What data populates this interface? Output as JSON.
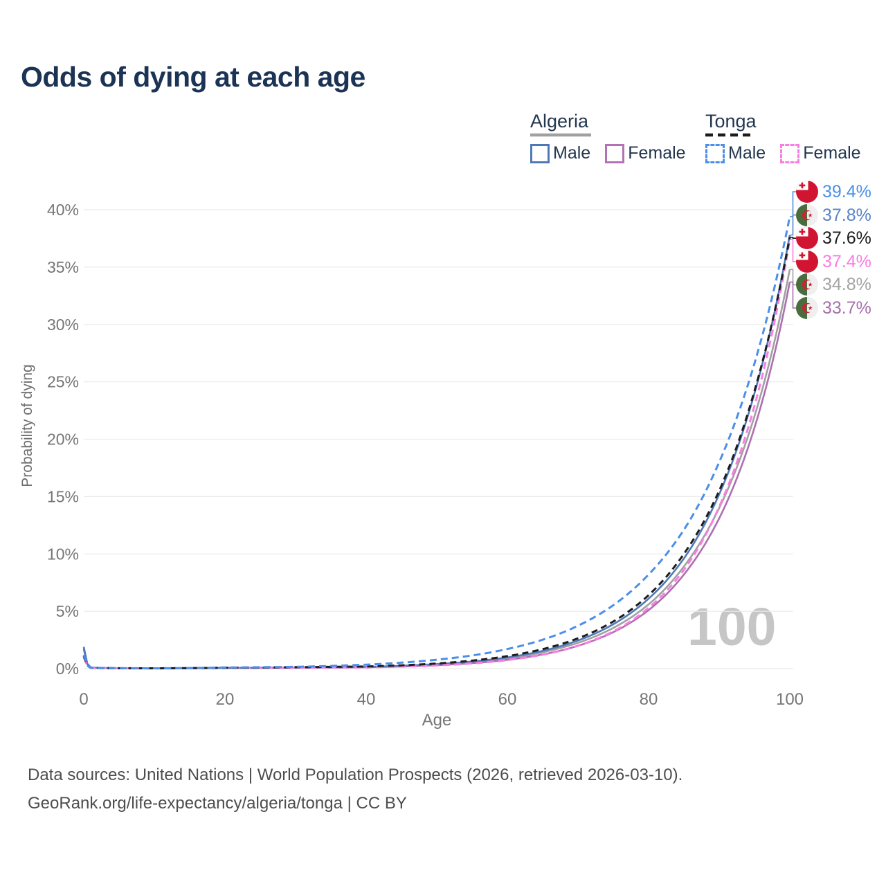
{
  "title": "Odds of dying at each age",
  "watermark": "100",
  "footer": {
    "line1": "Data sources: United Nations | World Population Prospects (2026, retrieved 2026-03-10).",
    "line2": "GeoRank.org/life-expectancy/algeria/tonga | CC BY"
  },
  "legend": {
    "groups": [
      {
        "country": "Algeria",
        "line_style": "solid",
        "underline_color": "#a0a0a0",
        "items": [
          {
            "label": "Male",
            "color": "#4e79b9"
          },
          {
            "label": "Female",
            "color": "#b372b4"
          }
        ]
      },
      {
        "country": "Tonga",
        "line_style": "dashed",
        "underline_color": "#1c1c1c",
        "items": [
          {
            "label": "Male",
            "color": "#4a8fe8"
          },
          {
            "label": "Female",
            "color": "#f97de2"
          }
        ]
      }
    ]
  },
  "chart_data": {
    "type": "line",
    "title": "Odds of dying at each age",
    "xlabel": "Age",
    "ylabel": "Probability of dying",
    "xlim": [
      0,
      100
    ],
    "ylim_percent": [
      0,
      42
    ],
    "x_ticks": [
      0,
      20,
      40,
      60,
      80,
      100
    ],
    "y_ticks_percent": [
      0,
      5,
      10,
      15,
      20,
      25,
      30,
      35,
      40
    ],
    "grid": "horizontal-only",
    "legend_position": "top-right",
    "ages": [
      0,
      1,
      5,
      10,
      20,
      30,
      40,
      50,
      55,
      60,
      65,
      70,
      75,
      80,
      85,
      90,
      95,
      100
    ],
    "series": [
      {
        "id": "algeria-average",
        "name": "Algeria",
        "country": "Algeria",
        "sex": "both",
        "color": "#a0a0a0",
        "dash": null,
        "values_percent": [
          1.8,
          0.09,
          0.035,
          0.03,
          0.06,
          0.09,
          0.15,
          0.36,
          0.57,
          0.9,
          1.43,
          2.25,
          3.55,
          5.6,
          8.9,
          14.0,
          22.0,
          34.8
        ]
      },
      {
        "id": "algeria-female",
        "name": "Algeria Female",
        "country": "Algeria",
        "sex": "female",
        "color": "#ad6fb0",
        "dash": null,
        "values_percent": [
          1.7,
          0.08,
          0.03,
          0.02,
          0.05,
          0.07,
          0.12,
          0.3,
          0.48,
          0.77,
          1.24,
          1.99,
          3.18,
          5.1,
          8.2,
          13.1,
          21.0,
          33.7
        ]
      },
      {
        "id": "algeria-male",
        "name": "Algeria Male",
        "country": "Algeria",
        "sex": "male",
        "color": "#4e79b9",
        "dash": null,
        "values_percent": [
          1.9,
          0.1,
          0.04,
          0.03,
          0.07,
          0.1,
          0.16,
          0.4,
          0.62,
          0.98,
          1.55,
          2.45,
          3.87,
          6.1,
          9.6,
          15.2,
          24.0,
          37.8
        ]
      },
      {
        "id": "tonga-female",
        "name": "Tonga Female",
        "country": "Tonga",
        "sex": "female",
        "color": "#f97de2",
        "dash": "10 6",
        "values_percent": [
          1.0,
          0.06,
          0.03,
          0.02,
          0.06,
          0.09,
          0.11,
          0.28,
          0.46,
          0.75,
          1.22,
          2.0,
          3.25,
          5.3,
          8.6,
          14.1,
          22.9,
          37.4
        ]
      },
      {
        "id": "tonga-average",
        "name": "Tonga",
        "country": "Tonga",
        "sex": "both",
        "color": "#1c1c1c",
        "dash": "9 6",
        "values_percent": [
          1.1,
          0.07,
          0.035,
          0.03,
          0.08,
          0.13,
          0.19,
          0.45,
          0.7,
          1.09,
          1.7,
          2.64,
          4.11,
          6.4,
          10.0,
          15.5,
          24.2,
          37.6
        ]
      },
      {
        "id": "tonga-male",
        "name": "Tonga Male",
        "country": "Tonga",
        "sex": "male",
        "color": "#4a8fe8",
        "dash": "10 6",
        "values_percent": [
          1.2,
          0.08,
          0.04,
          0.03,
          0.1,
          0.16,
          0.35,
          0.78,
          1.15,
          1.71,
          2.52,
          3.74,
          5.53,
          8.2,
          12.1,
          18.0,
          26.6,
          39.4
        ]
      }
    ],
    "end_labels": [
      {
        "text": "39.4%",
        "value_percent": 39.4,
        "flag": "tonga",
        "color": "#4a8fe8",
        "series": "tonga-male"
      },
      {
        "text": "37.8%",
        "value_percent": 37.8,
        "flag": "algeria",
        "color": "#5b83c6",
        "series": "algeria-male"
      },
      {
        "text": "37.6%",
        "value_percent": 37.6,
        "flag": "tonga",
        "color": "#1c1c1c",
        "series": "tonga-average"
      },
      {
        "text": "37.4%",
        "value_percent": 37.4,
        "flag": "tonga",
        "color": "#fb7ae2",
        "series": "tonga-female"
      },
      {
        "text": "34.8%",
        "value_percent": 34.8,
        "flag": "algeria",
        "color": "#a3a3a3",
        "series": "algeria-average"
      },
      {
        "text": "33.7%",
        "value_percent": 33.7,
        "flag": "algeria",
        "color": "#a670ab",
        "series": "algeria-female"
      }
    ],
    "flag_colors": {
      "tonga_red": "#d01431",
      "algeria_green": "#4a6d3e",
      "algeria_white": "#efefef",
      "algeria_red": "#cc2233"
    }
  }
}
